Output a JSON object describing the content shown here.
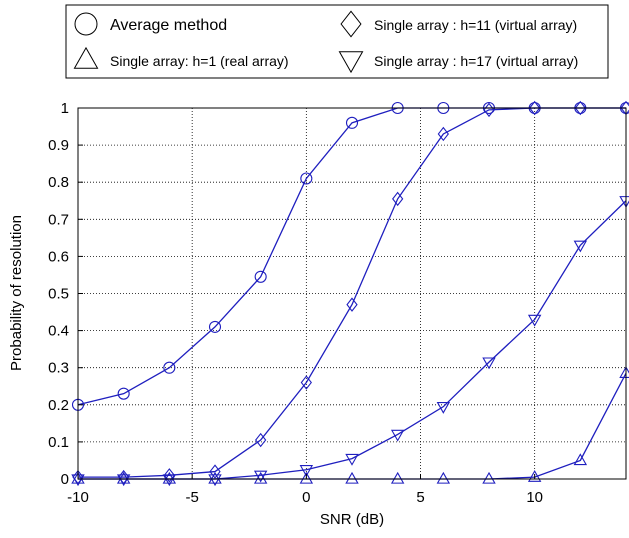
{
  "chart_data": {
    "type": "line",
    "title": "",
    "xlabel": "SNR (dB)",
    "ylabel": "Probability of resolution",
    "xlim": [
      -10,
      14
    ],
    "ylim": [
      0,
      1
    ],
    "x_ticks": [
      -10,
      -5,
      0,
      5,
      10
    ],
    "y_ticks": [
      0,
      0.1,
      0.2,
      0.3,
      0.4,
      0.5,
      0.6,
      0.7,
      0.8,
      0.9,
      1
    ],
    "grid": true,
    "grid_style": "dotted",
    "legend_position": "top",
    "line_color": "#1f1fbf",
    "x": [
      -10,
      -8,
      -6,
      -4,
      -2,
      0,
      2,
      4,
      6,
      8,
      10,
      12,
      14
    ],
    "series": [
      {
        "name": "Average method",
        "marker": "circle",
        "values": [
          0.2,
          0.23,
          0.3,
          0.41,
          0.545,
          0.81,
          0.96,
          1,
          1,
          1,
          1,
          1,
          1
        ]
      },
      {
        "name": "Single array: h=1 (real array)",
        "marker": "triangle-up",
        "values": [
          0,
          0,
          0,
          0,
          0,
          0,
          0,
          0,
          0,
          0,
          0.005,
          0.05,
          0.285
        ]
      },
      {
        "name": "Single array : h=11 (virtual array)",
        "marker": "diamond",
        "values": [
          0.005,
          0.005,
          0.01,
          0.02,
          0.105,
          0.26,
          0.47,
          0.755,
          0.93,
          0.995,
          1,
          1,
          1
        ]
      },
      {
        "name": "Single array : h=17 (virtual array)",
        "marker": "triangle-down",
        "values": [
          0,
          0,
          0,
          0,
          0.01,
          0.025,
          0.055,
          0.12,
          0.195,
          0.315,
          0.43,
          0.63,
          0.75
        ]
      }
    ]
  }
}
